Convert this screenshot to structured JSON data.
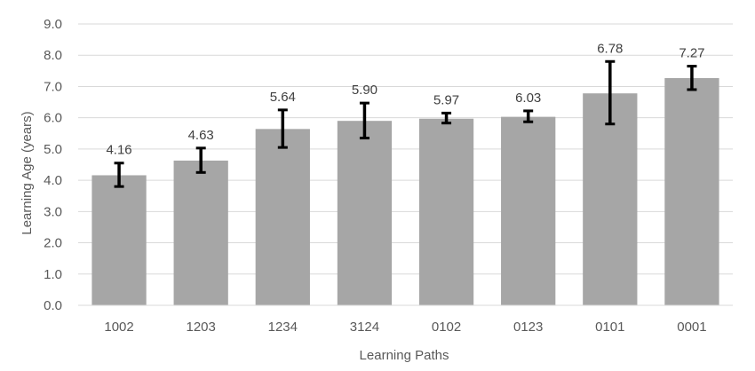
{
  "chart_data": {
    "type": "bar",
    "title": "",
    "xlabel": "Learning Paths",
    "ylabel": "Learning Age (years)",
    "ylim": [
      0,
      9
    ],
    "yticks": [
      "0.0",
      "1.0",
      "2.0",
      "3.0",
      "4.0",
      "5.0",
      "6.0",
      "7.0",
      "8.0",
      "9.0"
    ],
    "categories": [
      "1002",
      "1203",
      "1234",
      "3124",
      "0102",
      "0123",
      "0101",
      "0001"
    ],
    "values": [
      4.16,
      4.63,
      5.64,
      5.9,
      5.97,
      6.03,
      6.78,
      7.27
    ],
    "data_labels": [
      "4.16",
      "4.63",
      "5.64",
      "5.90",
      "5.97",
      "6.03",
      "6.78",
      "7.27"
    ],
    "error_low": [
      3.8,
      4.25,
      5.05,
      5.35,
      5.83,
      5.87,
      5.8,
      6.9
    ],
    "error_high": [
      4.55,
      5.03,
      6.25,
      6.47,
      6.15,
      6.22,
      7.8,
      7.65
    ],
    "grid": true,
    "legend": "none",
    "bar_color": "#a6a6a6",
    "error_color": "#000000",
    "grid_color": "#d9d9d9"
  }
}
